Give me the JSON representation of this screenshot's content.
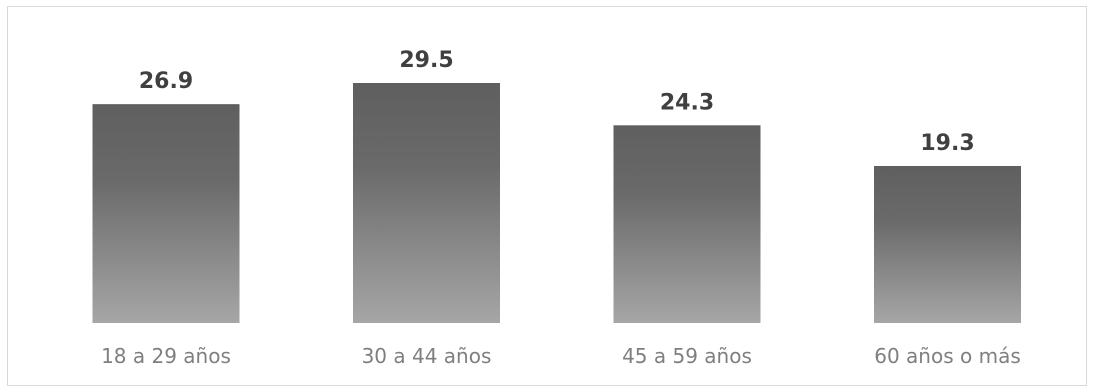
{
  "chart_data": {
    "type": "bar",
    "categories": [
      "18 a 29 años",
      "30 a 44 años",
      "45 a 59 años",
      "60 años o más"
    ],
    "values": [
      26.9,
      29.5,
      24.3,
      19.3
    ],
    "value_labels": [
      "26.9",
      "29.5",
      "24.3",
      "19.3"
    ],
    "title": "",
    "xlabel": "",
    "ylabel": "",
    "ylim": [
      0,
      29.5
    ],
    "grid": false,
    "legend": "none",
    "colors": {
      "bar_top": "#5f5f5f",
      "bar_bottom": "#a6a6a6",
      "value_label": "#404040",
      "category_label": "#7f7f7f",
      "frame": "#d9d9d9"
    }
  }
}
